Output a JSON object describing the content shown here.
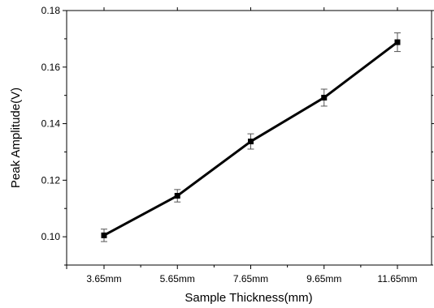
{
  "chart_data": {
    "type": "line",
    "title": "",
    "xlabel": "Sample Thickness(mm)",
    "ylabel": "Peak Amplitude(V)",
    "categories": [
      "3.65mm",
      "5.65mm",
      "7.65mm",
      "9.65mm",
      "11.65mm"
    ],
    "series": [
      {
        "values": [
          0.1005,
          0.1145,
          0.1337,
          0.1492,
          0.1688
        ],
        "errors": [
          0.0022,
          0.0022,
          0.0027,
          0.003,
          0.0033
        ],
        "marker": "square",
        "color": "#000000"
      }
    ],
    "ylim": [
      0.09,
      0.18
    ],
    "yticks": [
      "0.10",
      "0.12",
      "0.14",
      "0.16",
      "0.18"
    ],
    "grid": false,
    "legend": "none"
  }
}
